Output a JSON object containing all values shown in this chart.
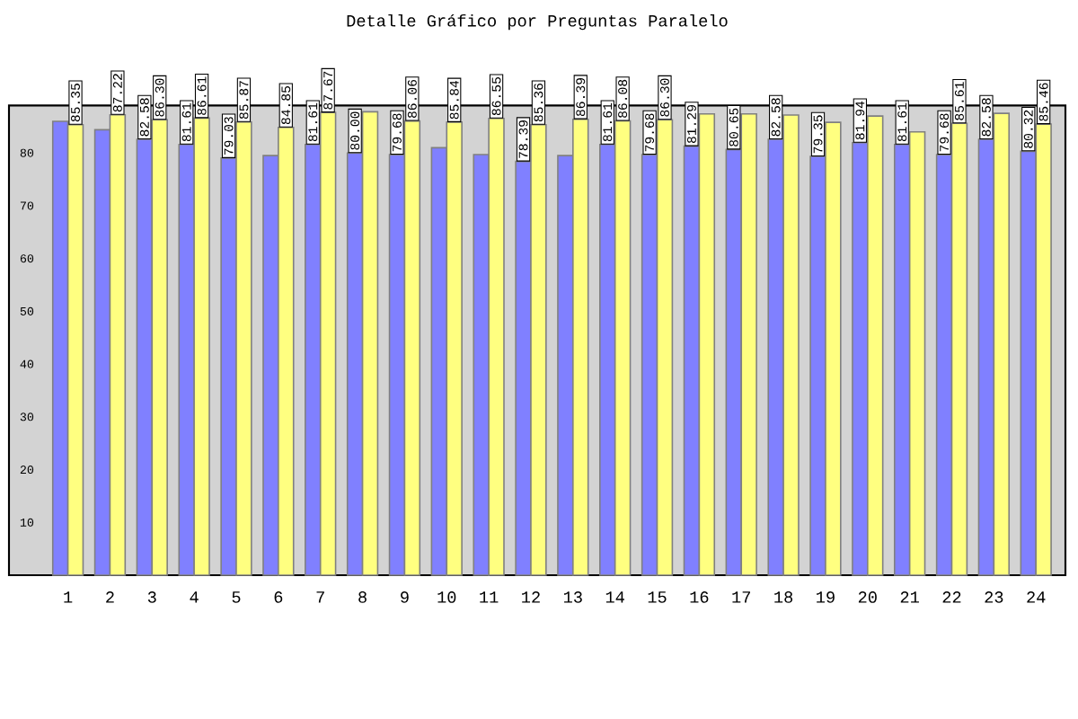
{
  "chart_data": {
    "type": "bar",
    "title": "Detalle Gráfico por Preguntas Paralelo",
    "categories": [
      "1",
      "2",
      "3",
      "4",
      "5",
      "6",
      "7",
      "8",
      "9",
      "10",
      "11",
      "12",
      "13",
      "14",
      "15",
      "16",
      "17",
      "18",
      "19",
      "20",
      "21",
      "22",
      "23",
      "24"
    ],
    "series": [
      {
        "color": "#8080ff",
        "values": [
          86.0,
          84.4,
          82.58,
          81.61,
          79.03,
          79.5,
          81.61,
          80.0,
          79.68,
          81.0,
          79.7,
          78.39,
          79.5,
          81.61,
          79.68,
          81.29,
          80.65,
          82.58,
          79.35,
          81.94,
          81.61,
          79.68,
          82.58,
          80.32
        ],
        "value_labels": [
          null,
          null,
          "82.58",
          "81.61",
          "79.03",
          null,
          "81.61",
          "80.00",
          "79.68",
          null,
          null,
          "78.39",
          null,
          "81.61",
          "79.68",
          "81.29",
          "80.65",
          "82.58",
          "79.35",
          "81.94",
          "81.61",
          "79.68",
          "82.58",
          "80.32"
        ]
      },
      {
        "color": "#ffff80",
        "values": [
          85.35,
          87.22,
          86.3,
          86.61,
          85.87,
          84.85,
          87.67,
          87.8,
          86.06,
          85.84,
          86.55,
          85.36,
          86.39,
          86.08,
          86.3,
          87.4,
          87.4,
          87.2,
          85.8,
          87.0,
          84.0,
          85.61,
          87.5,
          85.46
        ],
        "value_labels": [
          "85.35",
          "87.22",
          "86.30",
          "86.61",
          "85.87",
          "84.85",
          "87.67",
          null,
          "86.06",
          "85.84",
          "86.55",
          "85.36",
          "86.39",
          "86.08",
          "86.30",
          null,
          null,
          null,
          null,
          null,
          null,
          "85.61",
          null,
          "85.46"
        ]
      }
    ],
    "ylim": [
      0,
      89
    ],
    "yticks": [
      10,
      20,
      30,
      40,
      50,
      60,
      70,
      80
    ],
    "grid": false
  }
}
